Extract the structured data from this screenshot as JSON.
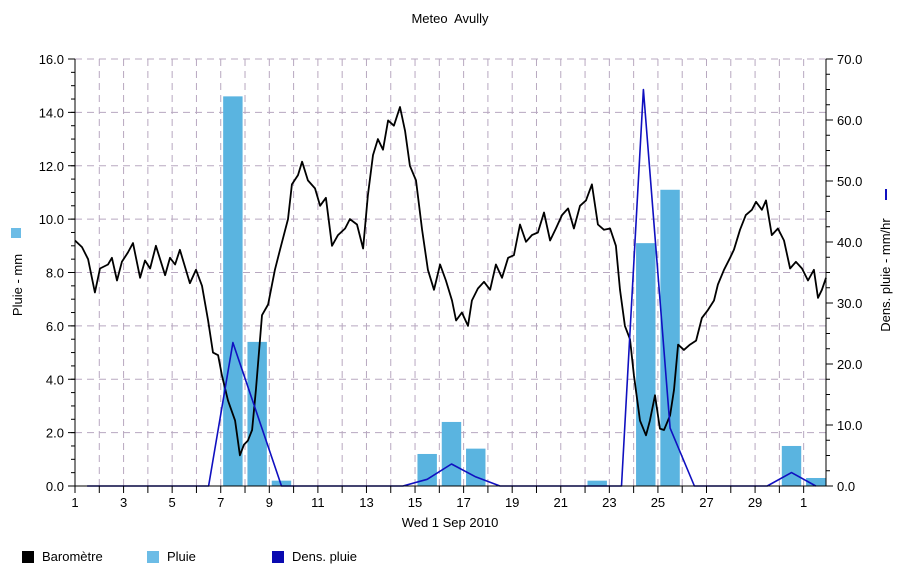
{
  "chart_data": {
    "type": "bar+line",
    "title": "Meteo  Avully",
    "xlabel": "Wed 1 Sep 2010",
    "ylabel_left": "Pluie - mm",
    "ylabel_right": "Dens. pluie - mm/hr",
    "ylim_left": [
      0,
      16
    ],
    "ylim_right": [
      0,
      70
    ],
    "xlim_days": [
      0,
      30.92
    ],
    "grid": true,
    "legend_position": "bottom-left",
    "x_ticks": [
      {
        "pos": 0,
        "label": "1"
      },
      {
        "pos": 2,
        "label": "3"
      },
      {
        "pos": 4,
        "label": "5"
      },
      {
        "pos": 6,
        "label": "7"
      },
      {
        "pos": 8,
        "label": "9"
      },
      {
        "pos": 10,
        "label": "11"
      },
      {
        "pos": 12,
        "label": "13"
      },
      {
        "pos": 14,
        "label": "15"
      },
      {
        "pos": 16,
        "label": "17"
      },
      {
        "pos": 18,
        "label": "19"
      },
      {
        "pos": 20,
        "label": "21"
      },
      {
        "pos": 22,
        "label": "23"
      },
      {
        "pos": 24,
        "label": "25"
      },
      {
        "pos": 26,
        "label": "27"
      },
      {
        "pos": 28,
        "label": "29"
      },
      {
        "pos": 30,
        "label": "1"
      }
    ],
    "y_ticks_left": [
      "0.0",
      "2.0",
      "4.0",
      "6.0",
      "8.0",
      "10.0",
      "12.0",
      "14.0",
      "16.0"
    ],
    "y_ticks_right": [
      "0.0",
      "10.0",
      "20.0",
      "30.0",
      "40.0",
      "50.0",
      "60.0",
      "70.0"
    ],
    "series": [
      {
        "name": "Pluie",
        "type": "bar",
        "axis": "left",
        "color": "#5ab4e0",
        "x": [
          6.5,
          7.5,
          8.5,
          14.5,
          15.5,
          16.5,
          21.5,
          23.5,
          24.5,
          29.5,
          30.5
        ],
        "values": [
          14.6,
          5.4,
          0.2,
          1.2,
          2.4,
          1.4,
          0.2,
          9.1,
          11.1,
          1.5,
          0.3
        ]
      },
      {
        "name": "Dens. pluie",
        "type": "line",
        "axis": "right",
        "color": "#1010c0",
        "x": [
          0.5,
          5.5,
          6.5,
          8.5,
          13.5,
          14.5,
          15.5,
          16.5,
          17.5,
          22.5,
          23.4,
          24.5,
          25.5,
          28.5,
          29.5,
          30.5
        ],
        "values": [
          0,
          0,
          23.5,
          0,
          0,
          1.1,
          3.6,
          1.5,
          0,
          0,
          65,
          9.5,
          0,
          0,
          2.2,
          0
        ]
      },
      {
        "name": "Baromètre",
        "type": "line",
        "axis": "left",
        "color": "#000000",
        "x": [
          0,
          0.29,
          0.54,
          0.82,
          1.03,
          1.36,
          1.52,
          1.73,
          1.93,
          2.18,
          2.39,
          2.68,
          2.88,
          3.09,
          3.33,
          3.71,
          3.91,
          4.12,
          4.32,
          4.73,
          4.98,
          5.23,
          5.48,
          5.68,
          5.89,
          6.05,
          6.3,
          6.59,
          6.79,
          6.96,
          7.12,
          7.29,
          7.45,
          7.7,
          7.95,
          8.23,
          8.44,
          8.77,
          8.93,
          9.18,
          9.35,
          9.59,
          9.88,
          10.09,
          10.33,
          10.58,
          10.83,
          11.12,
          11.32,
          11.61,
          11.86,
          12.06,
          12.27,
          12.47,
          12.68,
          12.89,
          13.13,
          13.38,
          13.59,
          13.79,
          14.04,
          14.29,
          14.53,
          14.78,
          15.03,
          15.27,
          15.52,
          15.69,
          15.93,
          16.18,
          16.34,
          16.59,
          16.84,
          17.09,
          17.33,
          17.58,
          17.83,
          18.07,
          18.32,
          18.57,
          18.81,
          19.06,
          19.31,
          19.56,
          19.8,
          20.05,
          20.3,
          20.54,
          20.79,
          21.04,
          21.28,
          21.53,
          21.78,
          22.03,
          22.27,
          22.44,
          22.64,
          22.85,
          23.01,
          23.26,
          23.51,
          23.67,
          23.88,
          24.08,
          24.25,
          24.5,
          24.66,
          24.83,
          25.07,
          25.32,
          25.57,
          25.81,
          26.06,
          26.31,
          26.47,
          26.72,
          26.97,
          27.13,
          27.38,
          27.62,
          27.87,
          28.04,
          28.28,
          28.45,
          28.69,
          28.94,
          29.19,
          29.44,
          29.68,
          29.93,
          30.18,
          30.42,
          30.59,
          30.75,
          30.92
        ],
        "values": [
          9.2,
          8.95,
          8.5,
          7.25,
          8.15,
          8.3,
          8.55,
          7.7,
          8.4,
          8.75,
          9.1,
          7.8,
          8.45,
          8.15,
          9.0,
          7.9,
          8.55,
          8.3,
          8.85,
          7.6,
          8.1,
          7.5,
          6.2,
          5.0,
          4.9,
          4.15,
          3.2,
          2.45,
          1.15,
          1.55,
          1.7,
          2.1,
          3.6,
          6.4,
          6.8,
          8.1,
          8.85,
          10.0,
          11.3,
          11.65,
          12.15,
          11.45,
          11.15,
          10.5,
          10.8,
          9.0,
          9.4,
          9.65,
          10.0,
          9.8,
          8.9,
          10.9,
          12.4,
          13.0,
          12.6,
          13.7,
          13.5,
          14.2,
          13.3,
          12.0,
          11.45,
          9.6,
          8.1,
          7.35,
          8.3,
          7.7,
          6.95,
          6.2,
          6.5,
          6.0,
          6.95,
          7.4,
          7.65,
          7.35,
          8.3,
          7.8,
          8.55,
          8.65,
          9.8,
          9.15,
          9.4,
          9.5,
          10.25,
          9.2,
          9.65,
          10.15,
          10.4,
          9.65,
          10.5,
          10.7,
          11.3,
          9.8,
          9.6,
          9.65,
          9.0,
          7.35,
          6.0,
          5.5,
          4.15,
          2.45,
          1.9,
          2.45,
          3.4,
          2.15,
          2.1,
          2.65,
          3.6,
          5.3,
          5.1,
          5.3,
          5.45,
          6.3,
          6.6,
          6.95,
          7.55,
          8.1,
          8.55,
          8.85,
          9.6,
          10.15,
          10.35,
          10.65,
          10.35,
          10.7,
          9.4,
          9.65,
          9.2,
          8.15,
          8.4,
          8.15,
          7.7,
          8.1,
          7.05,
          7.35,
          7.8
        ]
      }
    ]
  },
  "legend": [
    {
      "label": "Baromètre",
      "color": "#000000"
    },
    {
      "label": "Pluie",
      "color": "#6cbce6"
    },
    {
      "label": "Dens. pluie",
      "color": "#0a0ab0"
    }
  ]
}
